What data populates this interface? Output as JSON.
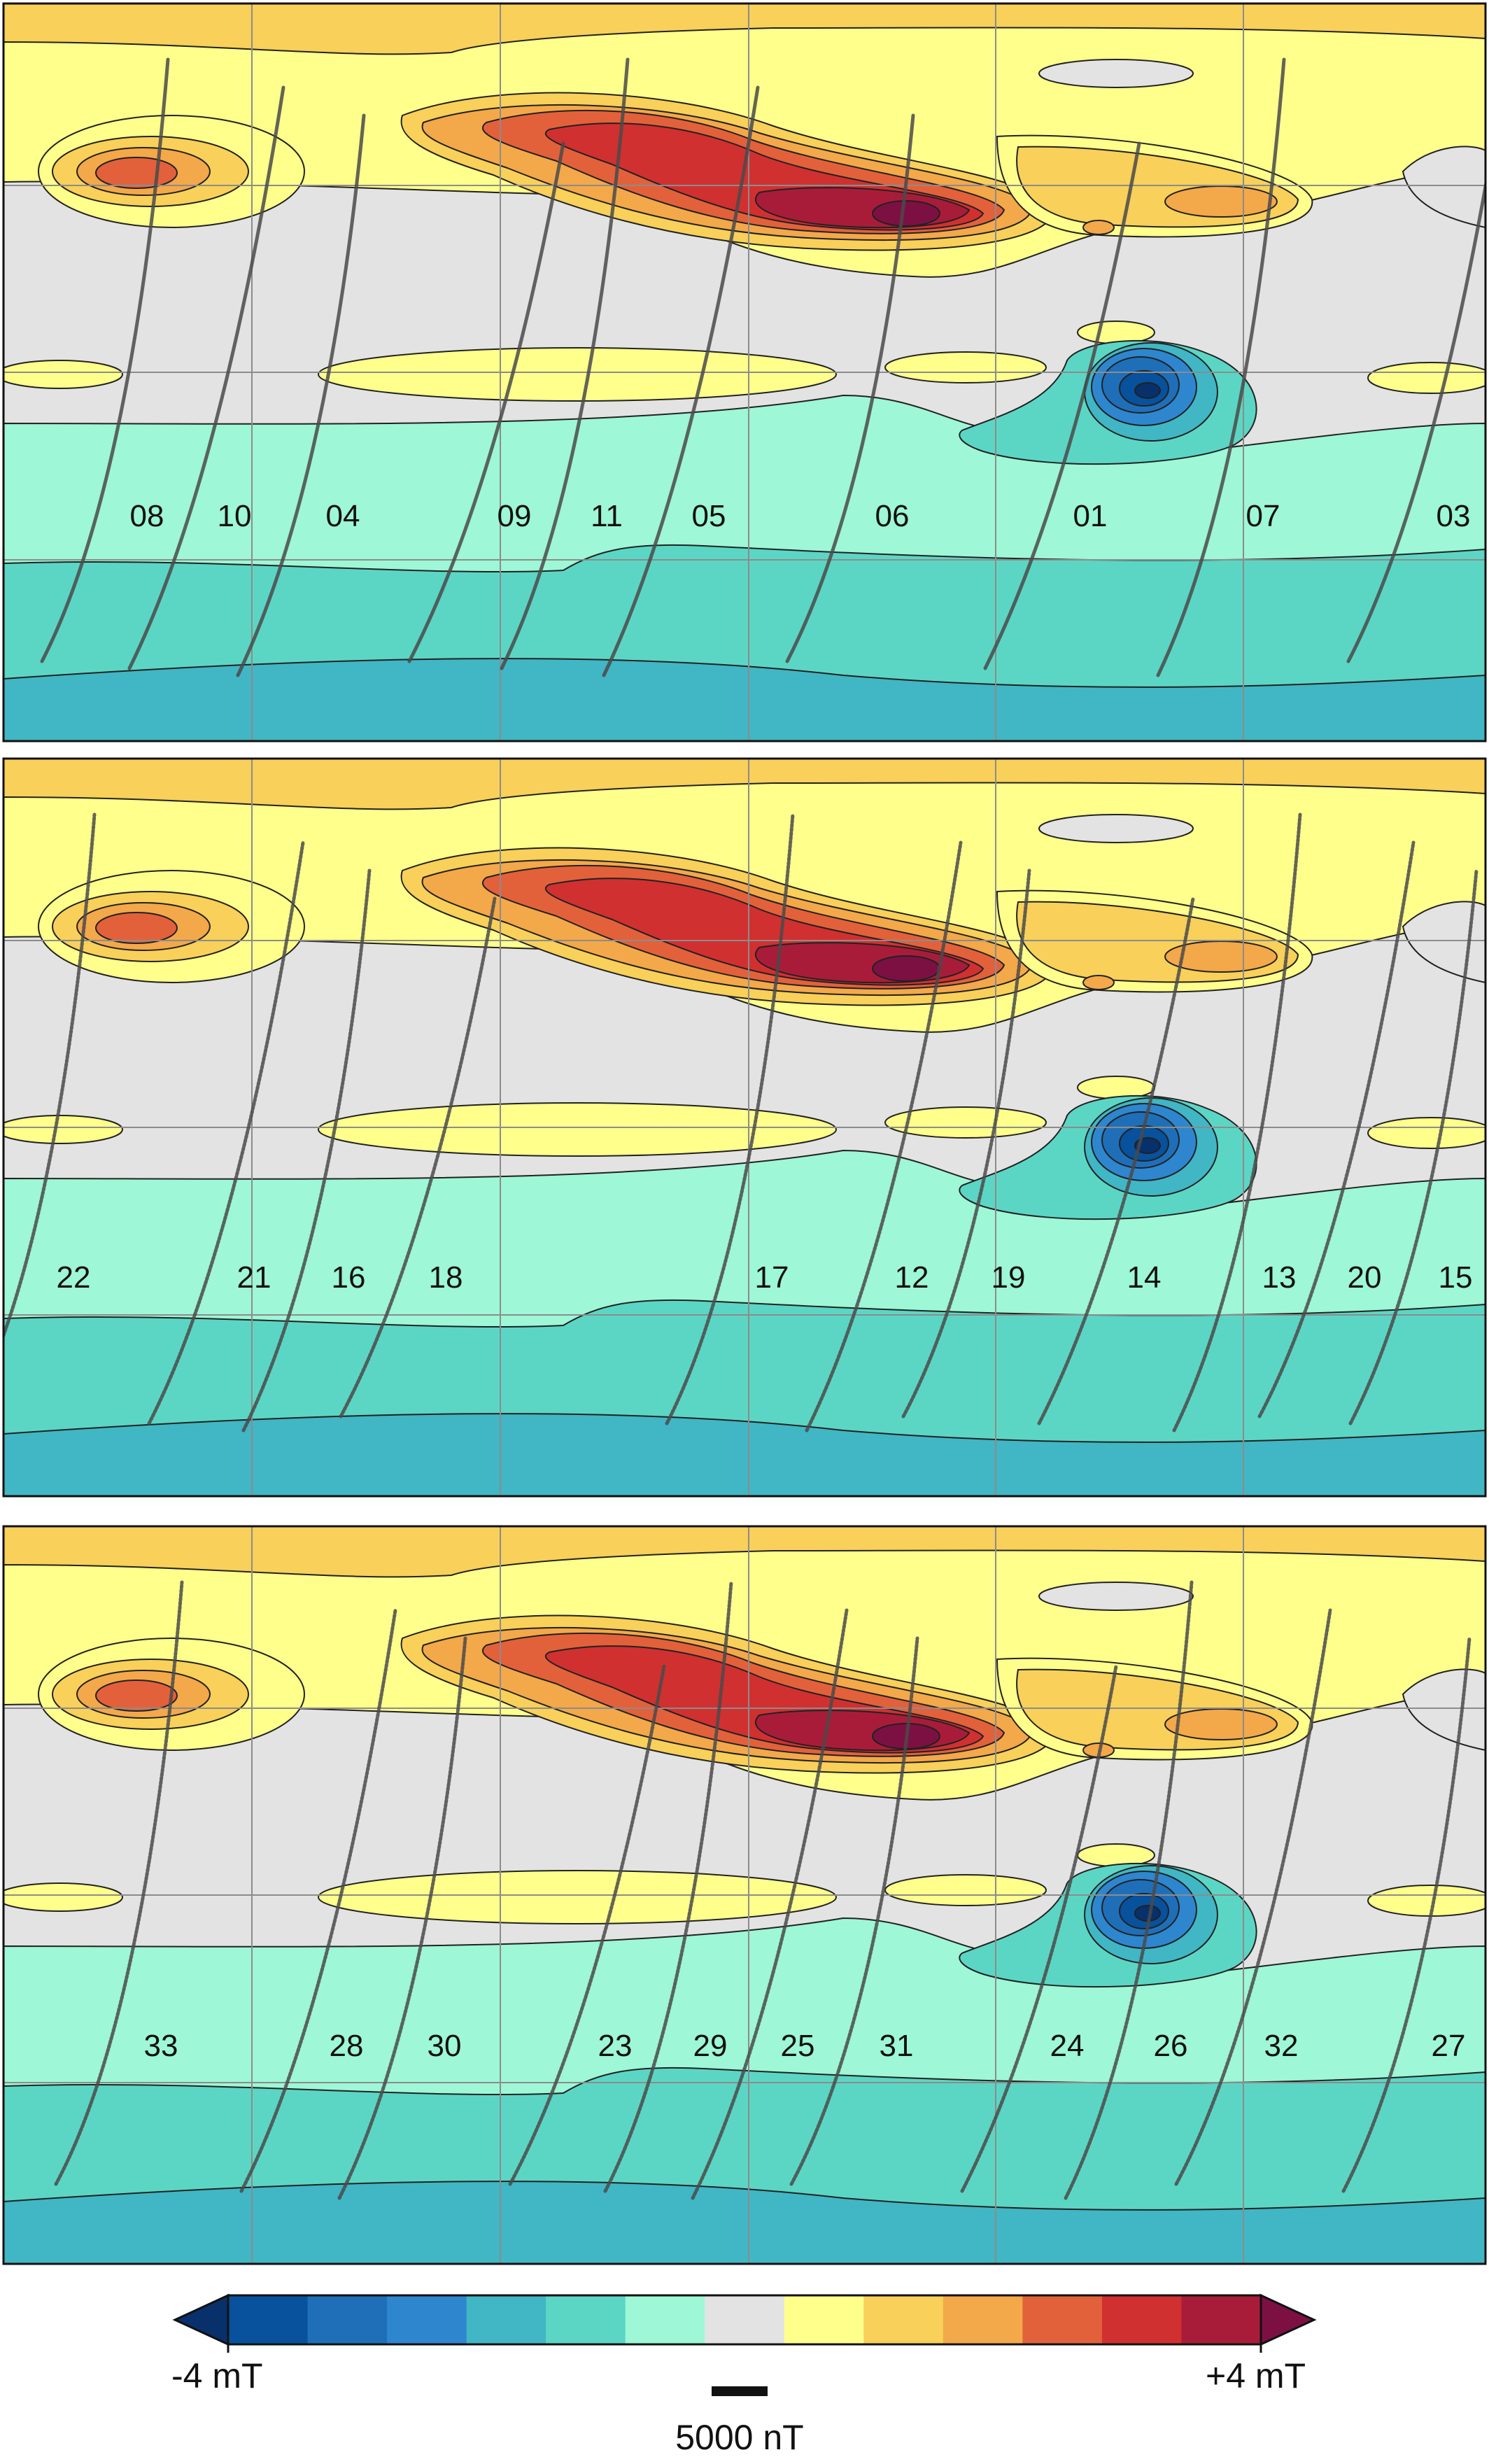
{
  "chart_data": {
    "type": "heatmap",
    "panels": [
      {
        "orbits": [
          "08",
          "10",
          "04",
          "09",
          "11",
          "05",
          "06",
          "01",
          "07",
          "03"
        ]
      },
      {
        "orbits": [
          "22",
          "21",
          "16",
          "18",
          "17",
          "12",
          "19",
          "14",
          "13",
          "20",
          "15"
        ]
      },
      {
        "orbits": [
          "33",
          "28",
          "30",
          "23",
          "29",
          "25",
          "31",
          "24",
          "26",
          "32",
          "27"
        ]
      }
    ],
    "colorbar": {
      "min_label": "-4 mT",
      "max_label": "+4 mT",
      "min": -4,
      "max": 4,
      "unit": "mT",
      "colors": [
        "#08306b",
        "#08519c",
        "#1f6fb8",
        "#2e86cf",
        "#41b6c4",
        "#5cd6c4",
        "#9ef7d6",
        "#e3e3e3",
        "#ffff8c",
        "#f8d05a",
        "#f3a84a",
        "#e2613b",
        "#d13030",
        "#a81c3a",
        "#7d1042"
      ]
    },
    "scale_bar": {
      "label": "5000 nT",
      "value": 5000,
      "unit": "nT"
    }
  }
}
